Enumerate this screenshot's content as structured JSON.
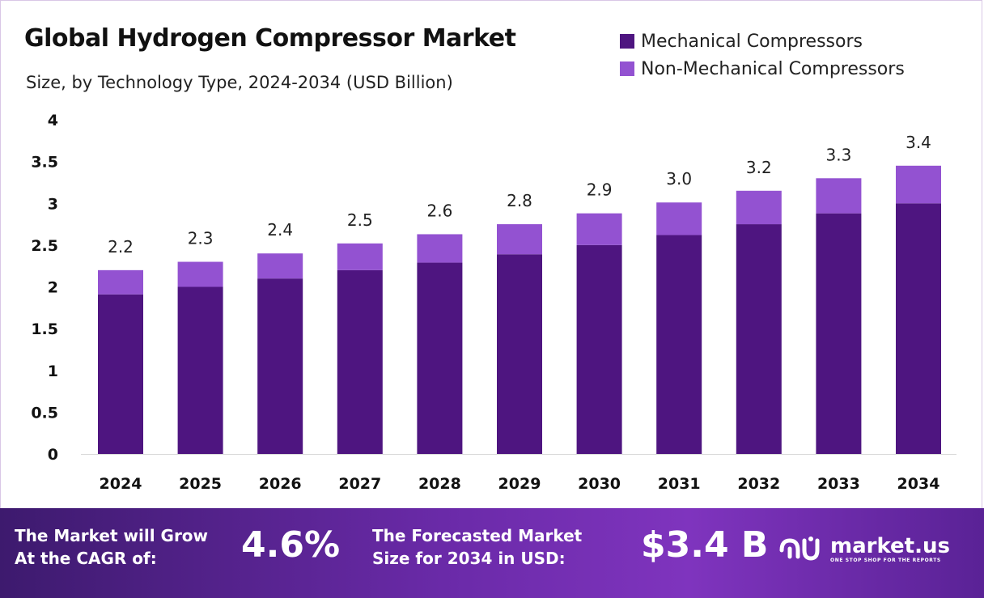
{
  "chart_data": {
    "type": "bar",
    "stacked": true,
    "title": "Global Hydrogen Compressor Market",
    "subtitle": "Size, by Technology Type, 2024-2034 (USD Billion)",
    "categories": [
      "2024",
      "2025",
      "2026",
      "2027",
      "2028",
      "2029",
      "2030",
      "2031",
      "2032",
      "2033",
      "2034"
    ],
    "series": [
      {
        "name": "Mechanical Compressors",
        "color": "#4e1580",
        "values": [
          1.91,
          2.0,
          2.1,
          2.2,
          2.29,
          2.39,
          2.5,
          2.62,
          2.75,
          2.88,
          3.0
        ]
      },
      {
        "name": "Non-Mechanical Compressors",
        "color": "#9352d1",
        "values": [
          0.29,
          0.3,
          0.3,
          0.32,
          0.34,
          0.36,
          0.38,
          0.39,
          0.4,
          0.42,
          0.45
        ]
      }
    ],
    "totals_labels": [
      "2.2",
      "2.3",
      "2.4",
      "2.5",
      "2.6",
      "2.8",
      "2.9",
      "3.0",
      "3.2",
      "3.3",
      "3.4"
    ],
    "y_ticks": [
      "0",
      "0.5",
      "1",
      "1.5",
      "2",
      "2.5",
      "3",
      "3.5",
      "4"
    ],
    "ylim": [
      0,
      4
    ],
    "grid": false,
    "legend_position": "top-right"
  },
  "footer": {
    "cagr_line1": "The Market will Grow",
    "cagr_line2": "At the CAGR of:",
    "cagr_value": "4.6%",
    "forecast_line1": "The Forecasted Market",
    "forecast_line2": "Size for 2034 in USD:",
    "forecast_value": "$3.4 B",
    "logo_name": "market.us",
    "logo_tagline": "ONE STOP SHOP FOR THE REPORTS",
    "logo_icon": "market-us-logo-icon"
  }
}
